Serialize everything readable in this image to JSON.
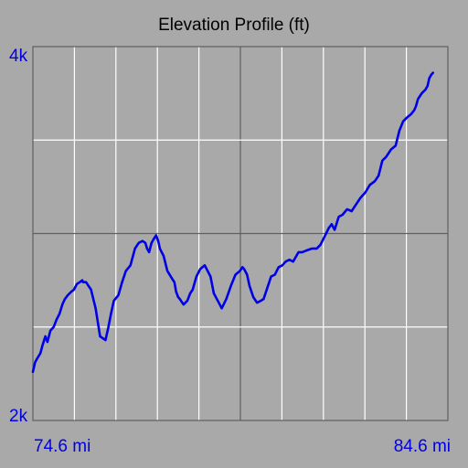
{
  "chart_data": {
    "type": "line",
    "title": "Elevation Profile (ft)",
    "xlabel": "",
    "ylabel": "",
    "x_unit": "mi",
    "y_unit": "ft",
    "xlim": [
      74.6,
      84.6
    ],
    "ylim": [
      2000,
      4000
    ],
    "x_tick_labels": [
      "74.6 mi",
      "84.6 mi"
    ],
    "y_tick_labels": [
      "4k",
      "2k"
    ],
    "grid": true,
    "x_gridlines": 10,
    "y_gridlines": 4,
    "legend": "none",
    "colors": {
      "line": "#0000e6",
      "grid_major": "#ffffff",
      "grid_center": "#606060",
      "background": "#a9a9a9",
      "axis_label": "#0000e6",
      "title": "#000000"
    },
    "series": [
      {
        "x": [
          74.6,
          74.65,
          74.7,
          74.78,
          74.83,
          74.9,
          74.95,
          75.02,
          75.1,
          75.17,
          75.24,
          75.31,
          75.37,
          75.44,
          75.53,
          75.59,
          75.66,
          75.73,
          75.79,
          75.81,
          75.88,
          76.0,
          76.11,
          76.22,
          76.35,
          76.42,
          76.48,
          76.55,
          76.66,
          76.75,
          76.84,
          76.95,
          77.06,
          77.15,
          77.24,
          77.31,
          77.35,
          77.4,
          77.46,
          77.51,
          77.57,
          77.62,
          77.66,
          77.75,
          77.84,
          77.95,
          78.01,
          78.05,
          78.1,
          78.14,
          78.23,
          78.32,
          78.39,
          78.45,
          78.54,
          78.63,
          78.74,
          78.88,
          78.96,
          79.08,
          79.15,
          79.26,
          79.37,
          79.48,
          79.59,
          79.65,
          79.69,
          79.76,
          79.82,
          79.91,
          80.0,
          80.09,
          80.16,
          80.25,
          80.34,
          80.43,
          80.52,
          80.61,
          80.69,
          80.78,
          80.87,
          81.0,
          81.09,
          81.2,
          81.33,
          81.44,
          81.53,
          81.62,
          81.73,
          81.8,
          81.87,
          81.97,
          82.06,
          82.17,
          82.28,
          82.4,
          82.49,
          82.61,
          82.72,
          82.84,
          82.93,
          83.02,
          83.11,
          83.23,
          83.34,
          83.43,
          83.52,
          83.61,
          83.72,
          83.79,
          83.83,
          83.88,
          83.97,
          84.06,
          84.11,
          84.15,
          84.2,
          84.24
        ],
        "y": [
          2260,
          2310,
          2330,
          2360,
          2400,
          2450,
          2420,
          2480,
          2500,
          2540,
          2570,
          2620,
          2650,
          2670,
          2690,
          2700,
          2730,
          2740,
          2750,
          2740,
          2740,
          2700,
          2600,
          2450,
          2430,
          2500,
          2570,
          2640,
          2670,
          2740,
          2800,
          2830,
          2920,
          2950,
          2960,
          2950,
          2920,
          2900,
          2950,
          2970,
          2990,
          2960,
          2920,
          2880,
          2800,
          2760,
          2740,
          2690,
          2660,
          2650,
          2620,
          2640,
          2680,
          2700,
          2770,
          2810,
          2830,
          2770,
          2680,
          2630,
          2600,
          2650,
          2720,
          2780,
          2800,
          2820,
          2810,
          2780,
          2720,
          2660,
          2630,
          2640,
          2650,
          2710,
          2770,
          2780,
          2820,
          2830,
          2850,
          2860,
          2850,
          2900,
          2900,
          2910,
          2920,
          2920,
          2940,
          2980,
          3030,
          3050,
          3020,
          3090,
          3100,
          3130,
          3120,
          3160,
          3190,
          3220,
          3260,
          3280,
          3310,
          3390,
          3410,
          3450,
          3470,
          3550,
          3600,
          3620,
          3640,
          3660,
          3680,
          3720,
          3750,
          3770,
          3790,
          3830,
          3850,
          3860
        ],
        "line_style": "solid"
      }
    ]
  }
}
